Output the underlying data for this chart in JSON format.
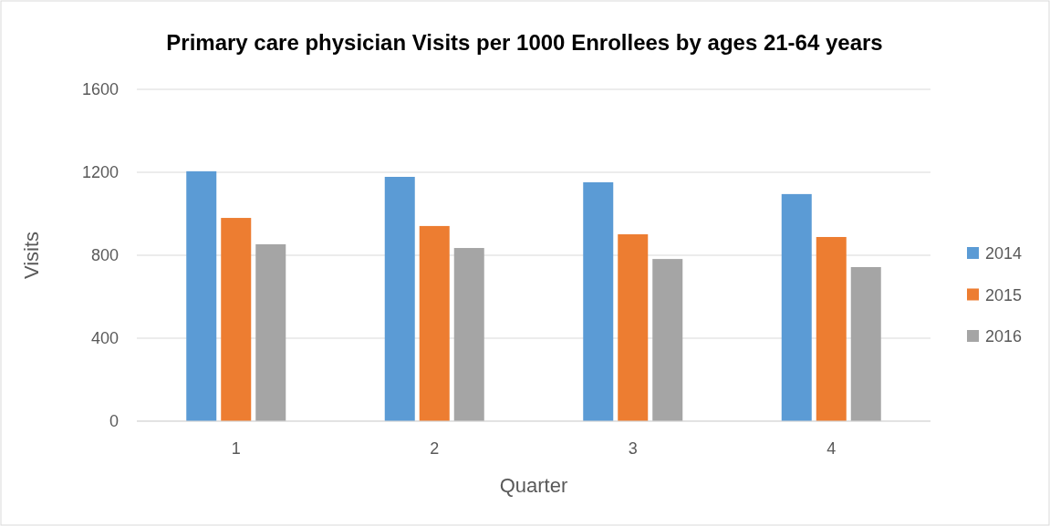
{
  "chart_data": {
    "type": "bar",
    "title": "Primary care physician Visits per 1000 Enrollees by ages 21-64 years",
    "xlabel": "Quarter",
    "ylabel": "Visits",
    "categories": [
      "1",
      "2",
      "3",
      "4"
    ],
    "series": [
      {
        "name": "2014",
        "color": "#5b9bd5",
        "values": [
          1205,
          1178,
          1152,
          1095
        ]
      },
      {
        "name": "2015",
        "color": "#ed7d31",
        "values": [
          980,
          941,
          901,
          888
        ]
      },
      {
        "name": "2016",
        "color": "#a5a5a5",
        "values": [
          853,
          835,
          782,
          743
        ]
      }
    ],
    "ylim": [
      0,
      1600
    ],
    "yticks": [
      0,
      400,
      800,
      1200,
      1600
    ],
    "grid": "y",
    "legend": "right"
  }
}
